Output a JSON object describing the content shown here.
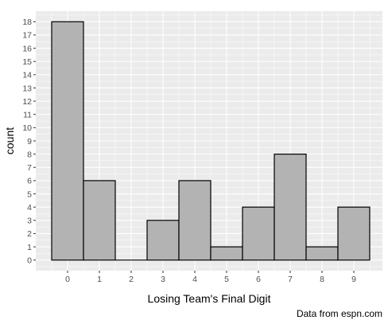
{
  "chart_data": {
    "type": "bar",
    "categories": [
      "0",
      "1",
      "2",
      "3",
      "4",
      "5",
      "6",
      "7",
      "8",
      "9"
    ],
    "values": [
      18,
      6,
      0,
      3,
      6,
      1,
      4,
      8,
      1,
      4
    ],
    "xlabel": "Losing Team's Final Digit",
    "ylabel": "count",
    "ylim": [
      -0.8,
      18.8
    ],
    "yticks": [
      "0",
      "1",
      "2",
      "3",
      "4",
      "5",
      "6",
      "7",
      "8",
      "9",
      "10",
      "11",
      "12",
      "13",
      "14",
      "15",
      "16",
      "17",
      "18"
    ],
    "caption": "Data from espn.com",
    "grid": true,
    "colors": {
      "panel": "#ebebeb",
      "grid": "#ffffff",
      "bar_fill": "#b3b3b3",
      "bar_stroke": "#000000"
    }
  }
}
